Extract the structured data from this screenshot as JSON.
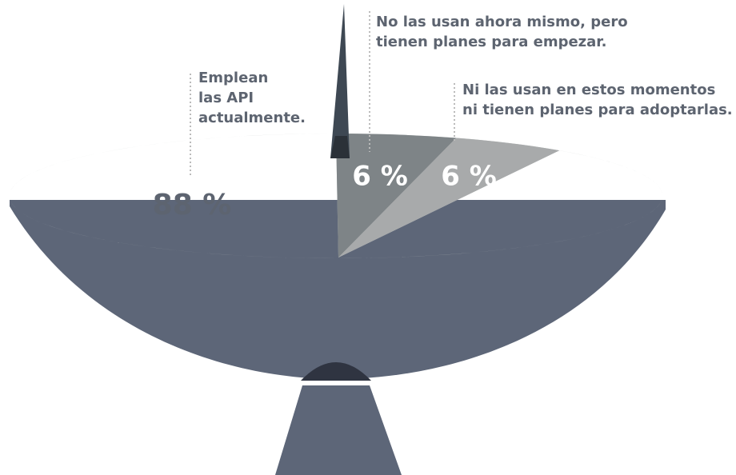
{
  "chart_data": {
    "type": "pie",
    "categories": [
      "Emplean\nlas API\nactualmente.",
      "No las usan ahora mismo, pero\ntienen planes para empezar.",
      "Ni las usan en estos momentos\nni tienen planes para adoptarlas."
    ],
    "values": [
      88,
      6,
      6
    ],
    "value_labels": [
      "88 %",
      "6 %",
      "6 %"
    ],
    "colors": [
      "#bfc5c3",
      "#7e8487",
      "#a8aaab"
    ]
  }
}
